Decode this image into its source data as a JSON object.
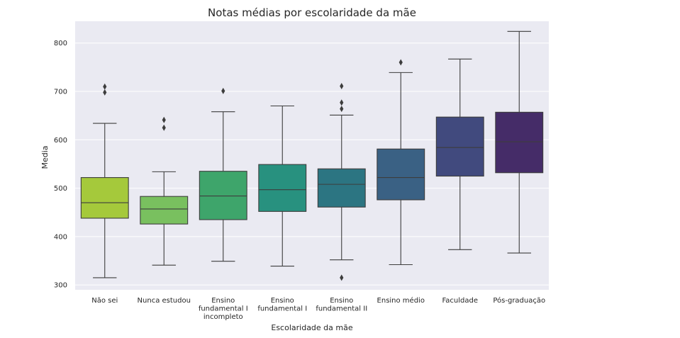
{
  "chart_data": {
    "type": "box",
    "title": "Notas médias por escolaridade da mãe",
    "xlabel": "Escolaridade da mãe",
    "ylabel": "Media",
    "ylim": [
      290,
      845
    ],
    "yticks": [
      300,
      400,
      500,
      600,
      700,
      800
    ],
    "grid": true,
    "categories": [
      "Não sei",
      "Nunca estudou",
      "Ensino fundamental I incompleto",
      "Ensino fundamental I",
      "Ensino fundamental II",
      "Ensino médio",
      "Faculdade",
      "Pós-graduação"
    ],
    "category_label_lines": [
      [
        "Não sei"
      ],
      [
        "Nunca estudou"
      ],
      [
        "Ensino",
        "fundamental I",
        "incompleto"
      ],
      [
        "Ensino",
        "fundamental I"
      ],
      [
        "Ensino",
        "fundamental II"
      ],
      [
        "Ensino médio"
      ],
      [
        "Faculdade"
      ],
      [
        "Pós-graduação"
      ]
    ],
    "boxes": [
      {
        "whisker_low": 315,
        "q1": 438,
        "median": 470,
        "q3": 522,
        "whisker_high": 634,
        "outliers": [
          698,
          710
        ],
        "color": "#a5c93b"
      },
      {
        "whisker_low": 341,
        "q1": 426,
        "median": 457,
        "q3": 483,
        "whisker_high": 534,
        "outliers": [
          625,
          641
        ],
        "color": "#79c05f"
      },
      {
        "whisker_low": 349,
        "q1": 435,
        "median": 484,
        "q3": 535,
        "whisker_high": 658,
        "outliers": [
          701
        ],
        "color": "#3ea56b"
      },
      {
        "whisker_low": 339,
        "q1": 452,
        "median": 497,
        "q3": 549,
        "whisker_high": 670,
        "outliers": [],
        "color": "#28917f"
      },
      {
        "whisker_low": 352,
        "q1": 461,
        "median": 508,
        "q3": 540,
        "whisker_high": 651,
        "outliers": [
          315,
          664,
          677,
          711
        ],
        "color": "#2c7582"
      },
      {
        "whisker_low": 342,
        "q1": 476,
        "median": 522,
        "q3": 581,
        "whisker_high": 739,
        "outliers": [
          760
        ],
        "color": "#3a6184"
      },
      {
        "whisker_low": 373,
        "q1": 525,
        "median": 584,
        "q3": 647,
        "whisker_high": 767,
        "outliers": [],
        "color": "#414a7e"
      },
      {
        "whisker_low": 366,
        "q1": 532,
        "median": 596,
        "q3": 657,
        "whisker_high": 824,
        "outliers": [],
        "color": "#452c68"
      }
    ]
  }
}
